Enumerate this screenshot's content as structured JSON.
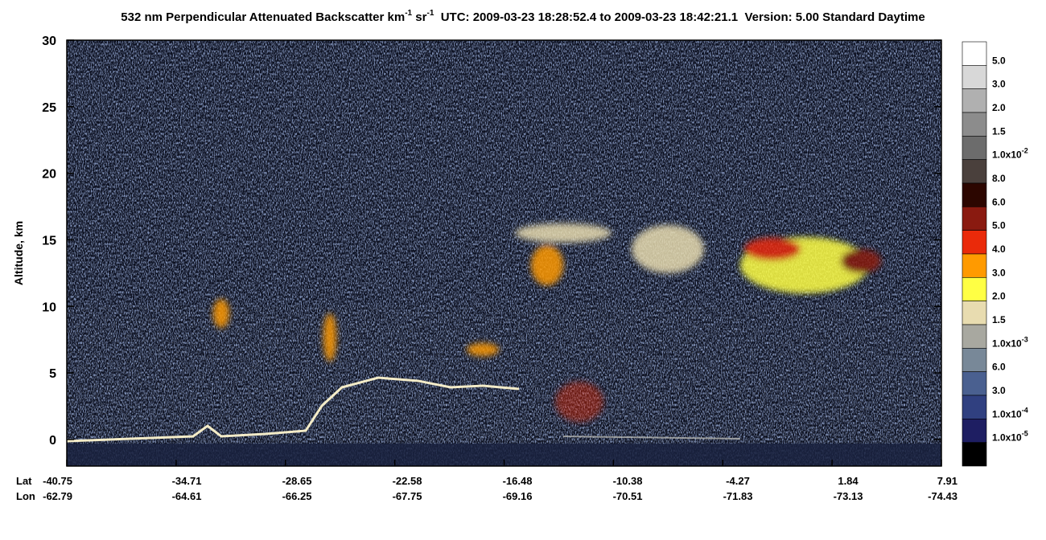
{
  "chart_data": {
    "type": "heatmap",
    "title": [
      "532 nm Perpendicular Attenuated Backscatter km",
      "-1",
      " sr",
      "-1",
      "  UTC: 2009-03-23 18:28:52.4 to 2009-03-23 18:42:21.1  Version: 5.00 Standard Daytime"
    ],
    "y_label": "Altitude, km",
    "ylim": [
      -2,
      30
    ],
    "yticks": [
      0,
      5,
      10,
      15,
      20,
      25,
      30
    ],
    "x_rows": [
      {
        "name": "Lat",
        "ticks": [
          -40.75,
          -34.71,
          -28.65,
          -22.58,
          -16.48,
          -10.38,
          -4.27,
          1.84,
          7.91
        ]
      },
      {
        "name": "Lon",
        "ticks": [
          -62.79,
          -64.61,
          -66.25,
          -67.75,
          -69.16,
          -70.51,
          -71.83,
          -73.13,
          -74.43
        ]
      }
    ],
    "colorbar": {
      "colors": [
        "#ffffff",
        "#d8d8d8",
        "#b0b0b0",
        "#8c8c8c",
        "#6c6c6c",
        "#4a403c",
        "#2c0600",
        "#8a1a10",
        "#ea2a0a",
        "#ff9a00",
        "#ffff44",
        "#e8dcb0",
        "#a8a8a0",
        "#788898",
        "#4a6090",
        "#304080",
        "#1e1e62",
        "#000000"
      ],
      "labels": [
        "5.0",
        "3.0",
        "2.0",
        "1.5",
        [
          "1.0x10",
          "-2"
        ],
        "8.0",
        "6.0",
        "5.0",
        "4.0",
        "3.0",
        "2.0",
        "1.5",
        [
          "1.0x10",
          "-3"
        ],
        "6.0",
        "3.0",
        [
          "1.0x10",
          "-4"
        ],
        [
          "1.0x10",
          "-5"
        ]
      ]
    }
  }
}
